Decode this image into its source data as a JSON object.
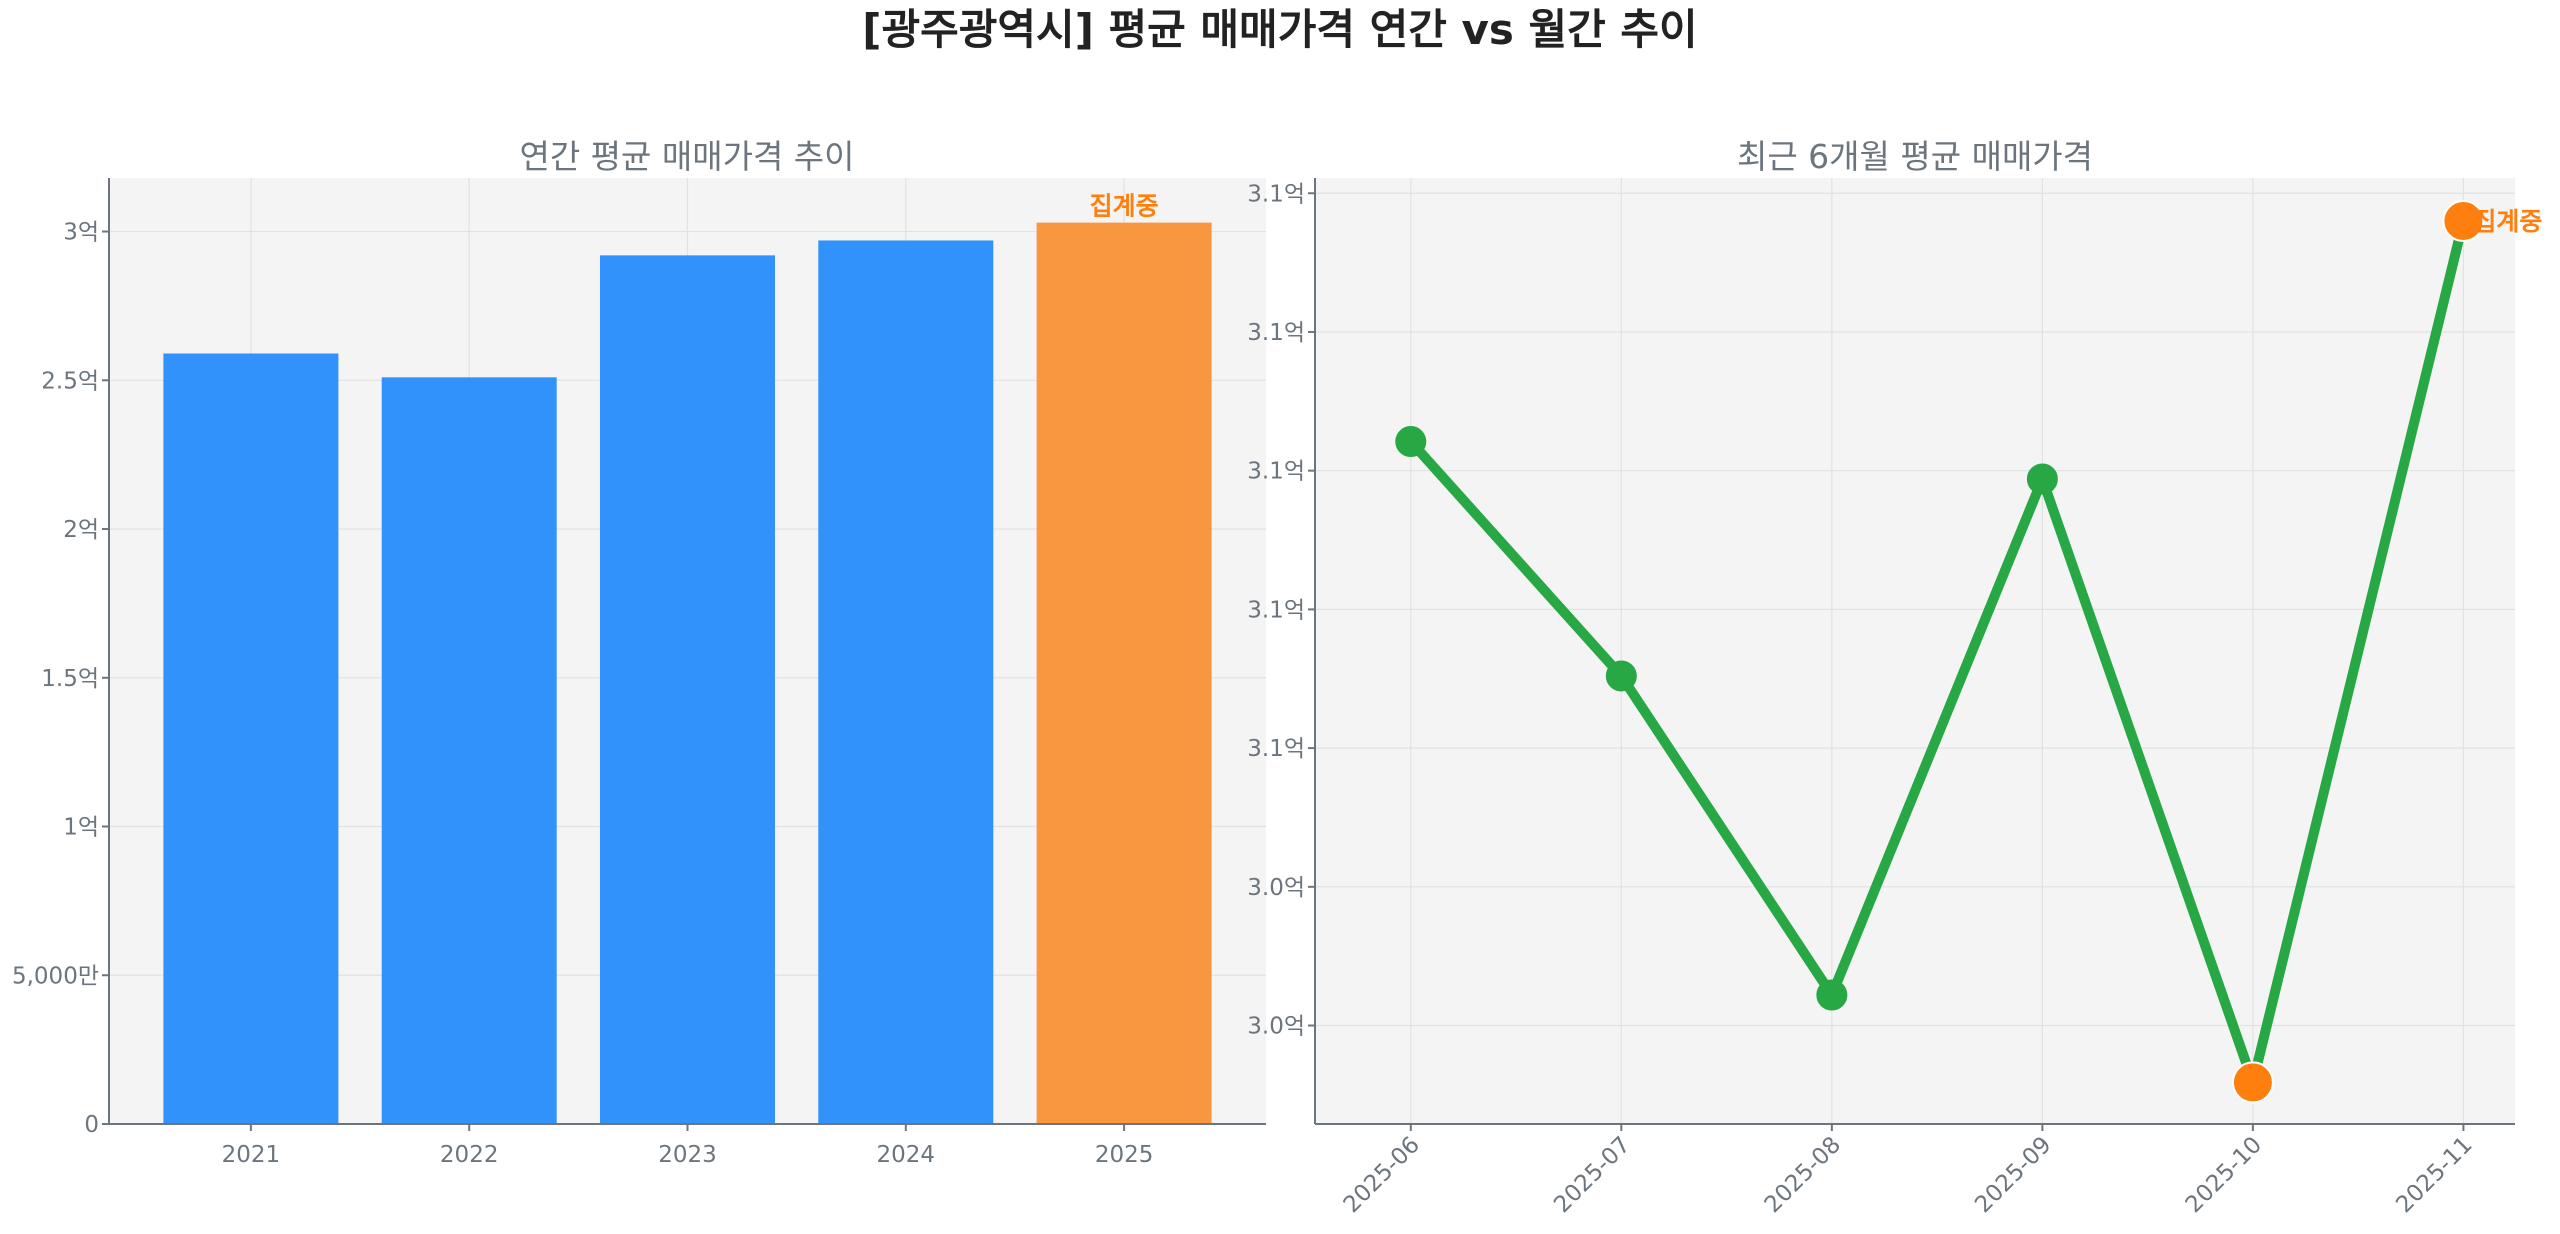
{
  "title": "[광주광역시] 평균 매매가격 연간 vs 월간 추이",
  "colors": {
    "bar": "#3192fb",
    "bar_current": "#f99640",
    "line": "#28a745",
    "marker_highlight": "#ff7f0e",
    "annotation": "#ff7f0e",
    "plot_bg": "#f4f4f4"
  },
  "chart_data": [
    {
      "type": "bar",
      "title": "연간 평균 매매가격 추이",
      "categories": [
        "2021",
        "2022",
        "2023",
        "2024",
        "2025"
      ],
      "values": [
        259000000,
        251000000,
        292000000,
        297000000,
        303000000
      ],
      "highlight_index": 4,
      "annotation": {
        "text": "집계중",
        "index": 4
      },
      "ylim": [
        0,
        318000000
      ],
      "yticks": [
        0,
        50000000,
        100000000,
        150000000,
        200000000,
        250000000,
        300000000
      ],
      "ytick_labels": [
        "0",
        "5,000만",
        "1억",
        "1.5억",
        "2억",
        "2.5억",
        "3억"
      ],
      "grid": true,
      "xlabel": "",
      "ylabel": ""
    },
    {
      "type": "line",
      "title": "최근 6개월 평균 매매가격",
      "categories": [
        "2025-06",
        "2025-07",
        "2025-08",
        "2025-09",
        "2025-10",
        "2025-11"
      ],
      "values": [
        308210000,
        306520000,
        304220000,
        307940000,
        303590000,
        309800000
      ],
      "highlight_indices": [
        4,
        5
      ],
      "annotation": {
        "text": "집계중",
        "index": 5
      },
      "ylim": [
        303290000,
        310110000
      ],
      "yticks": [
        304000000,
        305000000,
        306000000,
        307000000,
        308000000,
        309000000,
        310000000
      ],
      "ytick_labels": [
        "3.0억",
        "3.0억",
        "3.1억",
        "3.1억",
        "3.1억",
        "3.1억",
        "3.1억"
      ],
      "xtick_rotation": 45,
      "grid": true,
      "xlabel": "",
      "ylabel": ""
    }
  ]
}
